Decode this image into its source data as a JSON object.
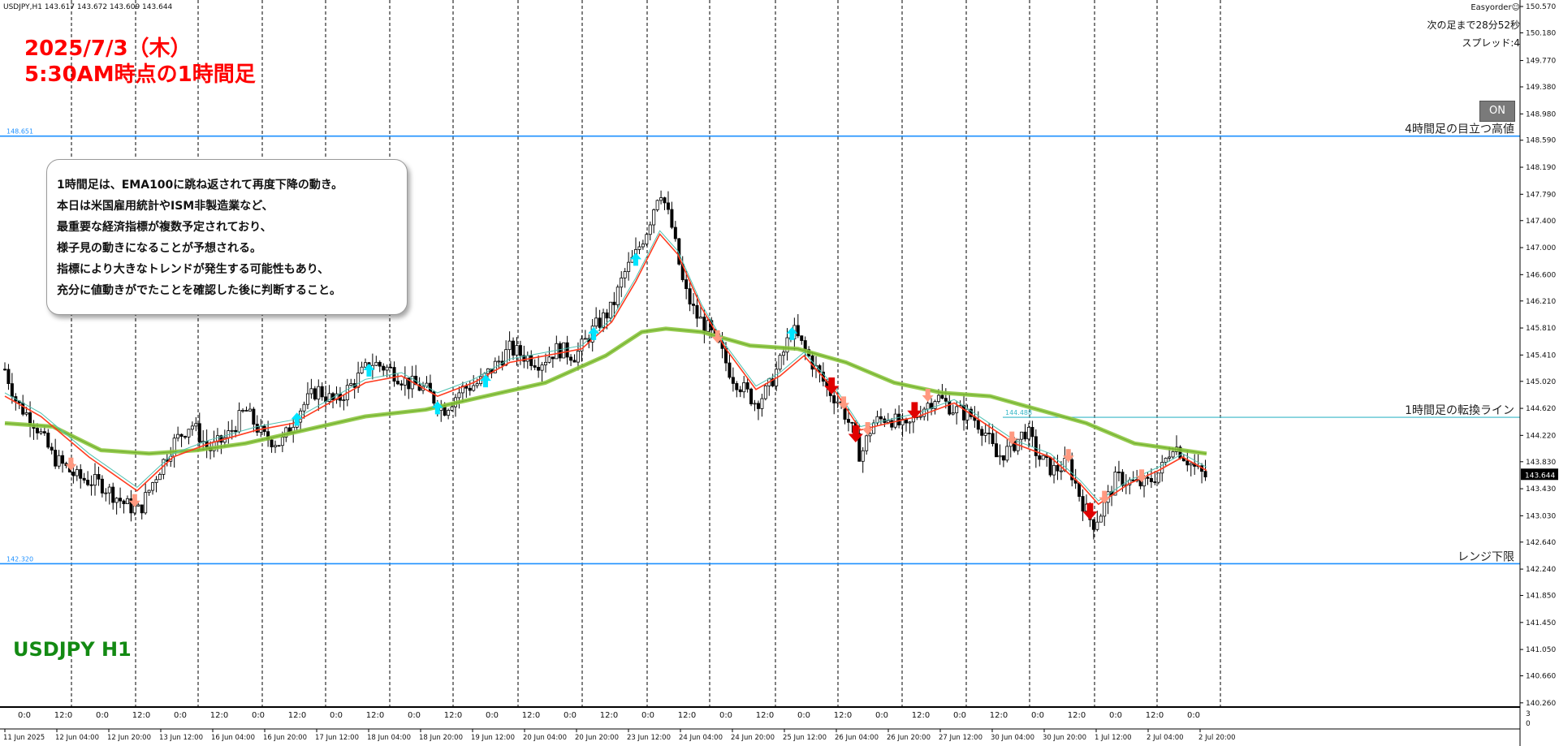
{
  "header": {
    "symbol_info": "USDJPY,H1  143.617 143.672 143.609 143.644",
    "ea_name": "Easyorder☺",
    "next_bar": "次の足まで28分52秒",
    "spread": "スプレッド:4",
    "on_button": "ON"
  },
  "title": {
    "line1": "2025/7/3（木）",
    "line2": "5:30AM時点の1時間足"
  },
  "symbol_label": "USDJPY H1",
  "annotation": [
    "1時間足は、EMA100に跳ね返されて再度下降の動き。",
    "本日は米国雇用統計やISM非製造業など、",
    "最重要な経済指標が複数予定されており、",
    "様子見の動きになることが予想される。",
    "指標により大きなトレンドが発生する可能性もあり、",
    "充分に値動きがでたことを確認した後に判断すること。"
  ],
  "colors": {
    "bull": "#000000",
    "bear": "#000000",
    "ema_fast": "#ff3b1f",
    "ema_fast2": "#4dc0b0",
    "ema100": "#8cc63f",
    "hline": "#1e90ff",
    "buy_arrow": "#00e5ff",
    "sell_arrow_strong": "#e00000",
    "sell_arrow_weak": "#ff9980",
    "title_red": "#ff0000",
    "symbol_green": "#138a13"
  },
  "chart_data": {
    "type": "candlestick",
    "symbol": "USDJPY",
    "timeframe": "H1",
    "ylim": [
      140.27,
      150.57
    ],
    "y_ticks": [
      "150.570",
      "150.180",
      "149.770",
      "149.380",
      "148.980",
      "148.590",
      "148.190",
      "147.790",
      "147.400",
      "147.000",
      "146.600",
      "146.210",
      "145.810",
      "145.410",
      "145.020",
      "144.620",
      "144.220",
      "143.830",
      "143.430",
      "143.030",
      "142.640",
      "142.240",
      "141.850",
      "141.450",
      "141.050",
      "140.660",
      "140.260"
    ],
    "current_price": "143.644",
    "x_labels": [
      "11 Jun 2025",
      "12 Jun 04:00",
      "12 Jun 20:00",
      "13 Jun 12:00",
      "16 Jun 04:00",
      "16 Jun 20:00",
      "17 Jun 12:00",
      "18 Jun 04:00",
      "18 Jun 20:00",
      "19 Jun 12:00",
      "20 Jun 04:00",
      "20 Jun 20:00",
      "23 Jun 12:00",
      "24 Jun 04:00",
      "24 Jun 20:00",
      "25 Jun 12:00",
      "26 Jun 04:00",
      "26 Jun 20:00",
      "27 Jun 12:00",
      "30 Jun 04:00",
      "30 Jun 20:00",
      "1 Jul 12:00",
      "2 Jul 04:00",
      "2 Jul 20:00"
    ],
    "subwindow_labels": [
      "0:0",
      "12:0",
      "0:0",
      "12:0",
      "0:0",
      "12:0",
      "0:0",
      "12:0",
      "0:0",
      "12:0",
      "0:0",
      "12:0",
      "0:0",
      "12:0",
      "0:0",
      "12:0",
      "0:0",
      "12:0",
      "0:0",
      "12:0",
      "0:0",
      "12:0",
      "0:0",
      "12:0",
      "0:0",
      "12:0",
      "0:0",
      "12:0",
      "0:0",
      "12:0",
      "0:0"
    ],
    "subwindow_scale": [
      "3",
      "0"
    ],
    "horizontal_lines": [
      {
        "price": 148.651,
        "label": "4時間足の目立つ高値",
        "price_label": "148.651"
      },
      {
        "price": 144.488,
        "label": "1時間足の転換ライン",
        "price_label": "144.488"
      },
      {
        "price": 142.32,
        "label": "レンジ下限",
        "price_label": "142.320"
      }
    ],
    "close_path": [
      [
        0,
        145.2
      ],
      [
        10,
        144.7
      ],
      [
        25,
        144.4
      ],
      [
        40,
        143.9
      ],
      [
        60,
        143.6
      ],
      [
        80,
        143.5
      ],
      [
        100,
        143.2
      ],
      [
        112,
        143.1
      ],
      [
        125,
        143.6
      ],
      [
        140,
        144.1
      ],
      [
        155,
        144.4
      ],
      [
        170,
        144.0
      ],
      [
        185,
        144.2
      ],
      [
        200,
        144.6
      ],
      [
        215,
        144.2
      ],
      [
        230,
        144.1
      ],
      [
        245,
        144.6
      ],
      [
        260,
        144.9
      ],
      [
        275,
        144.7
      ],
      [
        290,
        145.0
      ],
      [
        305,
        145.3
      ],
      [
        320,
        145.2
      ],
      [
        335,
        145.0
      ],
      [
        350,
        144.9
      ],
      [
        365,
        144.6
      ],
      [
        380,
        144.9
      ],
      [
        395,
        145.0
      ],
      [
        410,
        145.3
      ],
      [
        420,
        145.5
      ],
      [
        432,
        145.4
      ],
      [
        445,
        145.3
      ],
      [
        460,
        145.5
      ],
      [
        475,
        145.4
      ],
      [
        490,
        145.8
      ],
      [
        505,
        146.1
      ],
      [
        515,
        146.6
      ],
      [
        525,
        146.9
      ],
      [
        535,
        147.3
      ],
      [
        545,
        147.9
      ],
      [
        555,
        147.3
      ],
      [
        565,
        146.4
      ],
      [
        575,
        146.0
      ],
      [
        585,
        145.8
      ],
      [
        595,
        145.5
      ],
      [
        605,
        145.1
      ],
      [
        615,
        144.9
      ],
      [
        625,
        144.7
      ],
      [
        635,
        144.9
      ],
      [
        645,
        145.3
      ],
      [
        655,
        145.8
      ],
      [
        665,
        145.5
      ],
      [
        675,
        145.2
      ],
      [
        685,
        144.9
      ],
      [
        695,
        144.7
      ],
      [
        705,
        144.3
      ],
      [
        712,
        143.9
      ],
      [
        722,
        144.4
      ],
      [
        735,
        144.5
      ],
      [
        750,
        144.3
      ],
      [
        762,
        144.6
      ],
      [
        775,
        144.8
      ],
      [
        790,
        144.6
      ],
      [
        805,
        144.5
      ],
      [
        815,
        144.3
      ],
      [
        825,
        143.9
      ],
      [
        835,
        144.0
      ],
      [
        850,
        144.3
      ],
      [
        860,
        143.9
      ],
      [
        872,
        143.7
      ],
      [
        885,
        143.8
      ],
      [
        895,
        143.3
      ],
      [
        905,
        142.9
      ],
      [
        913,
        143.1
      ],
      [
        925,
        143.6
      ],
      [
        940,
        143.5
      ],
      [
        950,
        143.5
      ],
      [
        962,
        143.7
      ],
      [
        972,
        144.1
      ],
      [
        982,
        143.9
      ],
      [
        992,
        143.7
      ],
      [
        1000,
        143.6
      ]
    ],
    "ema_fast_path": [
      [
        0,
        144.8
      ],
      [
        30,
        144.5
      ],
      [
        70,
        143.9
      ],
      [
        110,
        143.4
      ],
      [
        140,
        143.9
      ],
      [
        170,
        144.1
      ],
      [
        210,
        144.3
      ],
      [
        240,
        144.4
      ],
      [
        270,
        144.7
      ],
      [
        300,
        145.0
      ],
      [
        330,
        145.1
      ],
      [
        360,
        144.8
      ],
      [
        390,
        145.0
      ],
      [
        420,
        145.3
      ],
      [
        450,
        145.4
      ],
      [
        480,
        145.5
      ],
      [
        505,
        145.9
      ],
      [
        525,
        146.5
      ],
      [
        545,
        147.2
      ],
      [
        560,
        146.9
      ],
      [
        580,
        146.1
      ],
      [
        600,
        145.5
      ],
      [
        625,
        144.9
      ],
      [
        645,
        145.1
      ],
      [
        665,
        145.4
      ],
      [
        690,
        144.9
      ],
      [
        712,
        144.3
      ],
      [
        735,
        144.4
      ],
      [
        760,
        144.5
      ],
      [
        790,
        144.7
      ],
      [
        815,
        144.4
      ],
      [
        840,
        144.1
      ],
      [
        870,
        143.9
      ],
      [
        895,
        143.5
      ],
      [
        910,
        143.2
      ],
      [
        935,
        143.5
      ],
      [
        960,
        143.7
      ],
      [
        980,
        143.9
      ],
      [
        1000,
        143.7
      ]
    ],
    "ema100_path": [
      [
        0,
        144.4
      ],
      [
        40,
        144.35
      ],
      [
        80,
        144.0
      ],
      [
        120,
        143.95
      ],
      [
        160,
        144.0
      ],
      [
        200,
        144.1
      ],
      [
        250,
        144.3
      ],
      [
        300,
        144.5
      ],
      [
        350,
        144.6
      ],
      [
        400,
        144.8
      ],
      [
        450,
        145.0
      ],
      [
        500,
        145.4
      ],
      [
        530,
        145.75
      ],
      [
        550,
        145.8
      ],
      [
        580,
        145.75
      ],
      [
        620,
        145.55
      ],
      [
        660,
        145.5
      ],
      [
        700,
        145.3
      ],
      [
        740,
        145.0
      ],
      [
        780,
        144.85
      ],
      [
        820,
        144.8
      ],
      [
        860,
        144.6
      ],
      [
        900,
        144.4
      ],
      [
        940,
        144.1
      ],
      [
        980,
        144.0
      ],
      [
        1000,
        143.95
      ]
    ],
    "signals": [
      {
        "x": 55,
        "type": "sell_weak"
      },
      {
        "x": 108,
        "type": "sell_weak"
      },
      {
        "x": 243,
        "type": "buy"
      },
      {
        "x": 303,
        "type": "buy"
      },
      {
        "x": 360,
        "type": "buy"
      },
      {
        "x": 400,
        "type": "buy"
      },
      {
        "x": 490,
        "type": "buy"
      },
      {
        "x": 525,
        "type": "buy"
      },
      {
        "x": 655,
        "type": "buy"
      },
      {
        "x": 593,
        "type": "sell_weak"
      },
      {
        "x": 688,
        "type": "sell_strong"
      },
      {
        "x": 698,
        "type": "sell_weak"
      },
      {
        "x": 708,
        "type": "sell_strong"
      },
      {
        "x": 718,
        "type": "sell_weak"
      },
      {
        "x": 757,
        "type": "sell_strong"
      },
      {
        "x": 768,
        "type": "sell_weak"
      },
      {
        "x": 838,
        "type": "sell_weak"
      },
      {
        "x": 885,
        "type": "sell_weak"
      },
      {
        "x": 903,
        "type": "sell_strong"
      },
      {
        "x": 915,
        "type": "sell_weak"
      },
      {
        "x": 946,
        "type": "sell_weak"
      }
    ]
  }
}
